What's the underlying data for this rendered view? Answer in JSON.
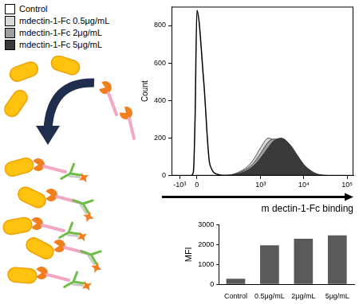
{
  "chart_data": [
    {
      "type": "line",
      "x": [
        -5000,
        -1000,
        -300,
        -100,
        -50,
        -25,
        0,
        25,
        50,
        100,
        200,
        300,
        500,
        700,
        1000,
        1500,
        2000,
        3000,
        5000,
        7000,
        10000,
        15000,
        20000,
        30000,
        50000,
        140000
      ],
      "series": [
        {
          "name": "Control",
          "color": "#ffffff",
          "values": [
            0,
            0,
            0,
            0,
            20,
            300,
            880,
            500,
            60,
            5,
            0,
            0,
            0,
            0,
            0,
            0,
            0,
            0,
            0,
            0,
            0,
            0,
            0,
            0,
            0,
            0
          ]
        },
        {
          "name": "mdectin-1-Fc 0.5μg/mL",
          "color": "#d9d9d9",
          "values": [
            0,
            0,
            0,
            0,
            0,
            0,
            0,
            0,
            0,
            1,
            5,
            18,
            50,
            90,
            150,
            200,
            190,
            160,
            100,
            60,
            25,
            8,
            3,
            0,
            0,
            0
          ]
        },
        {
          "name": "mdectin-1-Fc 2μg/mL",
          "color": "#9e9e9e",
          "values": [
            0,
            0,
            0,
            0,
            0,
            0,
            0,
            0,
            0,
            1,
            4,
            14,
            40,
            70,
            120,
            180,
            195,
            190,
            130,
            85,
            40,
            15,
            5,
            1,
            0,
            0
          ]
        },
        {
          "name": "mdectin-1-Fc 5μg/mL",
          "color": "#3a3a3a",
          "values": [
            0,
            0,
            0,
            0,
            0,
            0,
            0,
            0,
            0,
            0,
            3,
            10,
            30,
            55,
            95,
            150,
            185,
            200,
            160,
            110,
            60,
            25,
            10,
            3,
            0,
            0
          ]
        }
      ],
      "x_label": "m dectin-1-Fc binding",
      "y_label": "Count",
      "xlim": [
        -5000,
        140000
      ],
      "xticks": [
        {
          "value": -1000,
          "label": "-10³"
        },
        0,
        {
          "value": 1000,
          "label": "10³"
        },
        {
          "value": 10000,
          "label": "10⁴"
        },
        {
          "value": 100000,
          "label": "10⁵"
        }
      ],
      "ylim": [
        0,
        900
      ],
      "yticks": [
        0,
        200,
        400,
        600,
        800
      ],
      "grid": false,
      "legend": "left"
    },
    {
      "type": "bar",
      "categories": [
        "Control",
        "0.5μg/mL",
        "2μg/mL",
        "5μg/mL"
      ],
      "values": [
        280,
        1960,
        2290,
        2460
      ],
      "color": "#595959",
      "y_label": "MFI",
      "ylim": [
        0,
        3000
      ],
      "yticks": [
        0,
        1000,
        2000,
        3000
      ],
      "grid": false
    }
  ]
}
